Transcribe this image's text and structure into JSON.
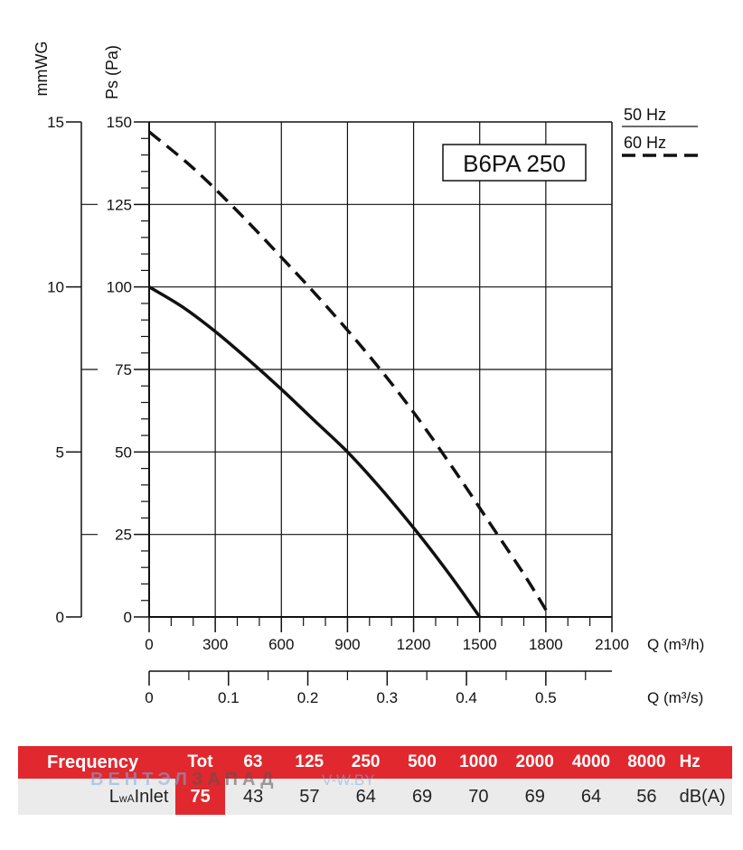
{
  "chart_data": {
    "type": "line",
    "title": "B6PA 250",
    "y_label_left": "mmWG",
    "y_label": "Ps (Pa)",
    "x_label": "Q (m³/h)",
    "x2_label": "Q (m³/s)",
    "x_ticks": [
      "0",
      "300",
      "600",
      "900",
      "1200",
      "1500",
      "1800",
      "2100"
    ],
    "x2_ticks": [
      "0",
      "0.1",
      "0.2",
      "0.3",
      "0.4",
      "0.5"
    ],
    "y_ticks": [
      "0",
      "25",
      "50",
      "75",
      "100",
      "125",
      "150"
    ],
    "y_left_ticks": [
      "0",
      "5",
      "10",
      "15"
    ],
    "xlim": [
      0,
      2100
    ],
    "ylim": [
      0,
      150
    ],
    "grid": true,
    "legend": [
      "50 Hz",
      "60 Hz"
    ],
    "series": [
      {
        "name": "50 Hz",
        "style": "solid",
        "color": "#111111",
        "x": [
          0,
          150,
          300,
          450,
          600,
          750,
          900,
          1050,
          1200,
          1300,
          1400,
          1500
        ],
        "y": [
          100,
          94,
          86.5,
          78,
          69,
          59.5,
          50,
          39,
          27,
          18.5,
          9.5,
          0
        ]
      },
      {
        "name": "60 Hz",
        "style": "dashed",
        "color": "#111111",
        "x": [
          0,
          200,
          400,
          600,
          800,
          1000,
          1200,
          1400,
          1550,
          1700,
          1820
        ],
        "y": [
          147,
          136,
          123,
          109,
          94.5,
          79,
          62,
          43,
          28,
          13,
          0
        ]
      }
    ]
  },
  "table": {
    "header": [
      "Frequency",
      "Tot",
      "63",
      "125",
      "250",
      "500",
      "1000",
      "2000",
      "4000",
      "8000",
      "Hz"
    ],
    "row_label_main": "L",
    "row_label_sub": "wA",
    "row_label_rest": " Inlet",
    "values": [
      "75",
      "43",
      "57",
      "64",
      "69",
      "70",
      "69",
      "64",
      "56",
      "dB(A)"
    ]
  },
  "watermark": {
    "part1": "ВЕНТЭЛ",
    "part2": "ЗАПАД",
    "site": "V-W.BY"
  }
}
